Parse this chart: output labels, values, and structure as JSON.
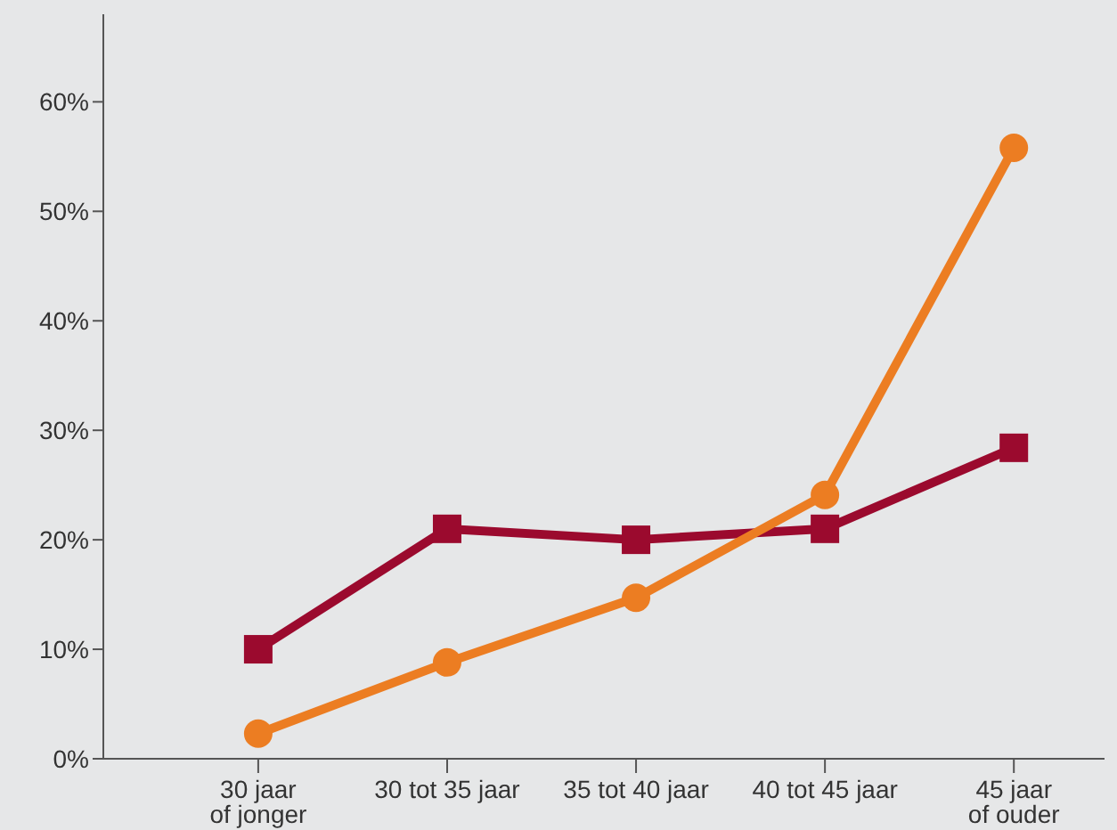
{
  "chart_data": {
    "type": "line",
    "categories": [
      "30 jaar\nof jonger",
      "30 tot 35 jaar",
      "35 tot 40 jaar",
      "40 tot 45 jaar",
      "45 jaar\nof ouder"
    ],
    "series": [
      {
        "color": "#9b0a2e",
        "marker": "square",
        "values": [
          10,
          21,
          20,
          21,
          28.4
        ]
      },
      {
        "color": "#ec7d22",
        "marker": "circle",
        "values": [
          2.3,
          8.8,
          14.7,
          24.1,
          55.8
        ]
      }
    ],
    "ylim": [
      0,
      68
    ],
    "yticks": [
      {
        "value": 0,
        "label": "0%"
      },
      {
        "value": 10,
        "label": "10%"
      },
      {
        "value": 20,
        "label": "20%"
      },
      {
        "value": 30,
        "label": "30%"
      },
      {
        "value": 40,
        "label": "40%"
      },
      {
        "value": 50,
        "label": "50%"
      },
      {
        "value": 60,
        "label": "60%"
      }
    ],
    "grid": false,
    "legend": false
  }
}
